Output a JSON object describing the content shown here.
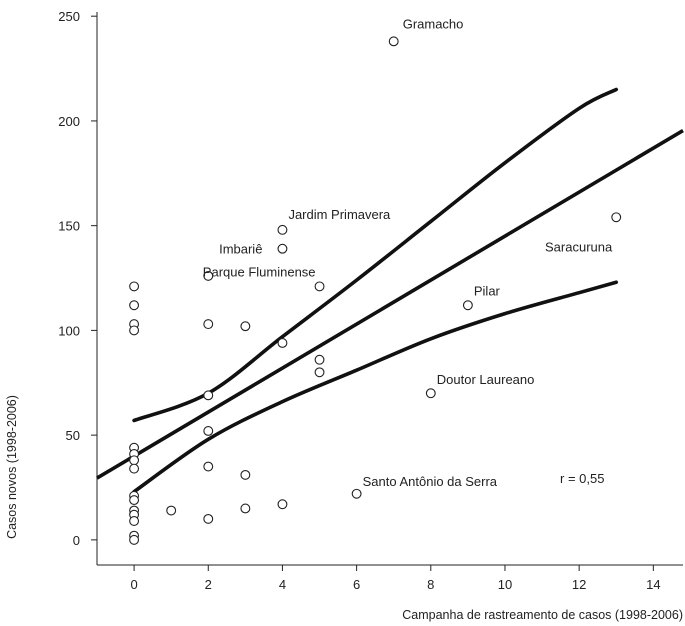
{
  "chart_data": {
    "type": "scatter",
    "title": "",
    "xlabel": "Campanha de rastreamento de casos (1998-2006)",
    "ylabel": "Casos novos (1998-2006)",
    "xlim": [
      -1,
      14.8
    ],
    "ylim": [
      -12,
      252
    ],
    "xticks": [
      0,
      2,
      4,
      6,
      8,
      10,
      12,
      14
    ],
    "yticks": [
      0,
      50,
      100,
      150,
      200,
      250
    ],
    "points": [
      {
        "x": 0,
        "y": 121
      },
      {
        "x": 0,
        "y": 112
      },
      {
        "x": 0,
        "y": 103
      },
      {
        "x": 0,
        "y": 100
      },
      {
        "x": 0,
        "y": 44
      },
      {
        "x": 0,
        "y": 41
      },
      {
        "x": 0,
        "y": 38
      },
      {
        "x": 0,
        "y": 34
      },
      {
        "x": 0,
        "y": 21
      },
      {
        "x": 0,
        "y": 19
      },
      {
        "x": 0,
        "y": 14
      },
      {
        "x": 0,
        "y": 12
      },
      {
        "x": 0,
        "y": 9
      },
      {
        "x": 0,
        "y": 2
      },
      {
        "x": 0,
        "y": 0
      },
      {
        "x": 1,
        "y": 14
      },
      {
        "x": 2,
        "y": 126
      },
      {
        "x": 2,
        "y": 103
      },
      {
        "x": 2,
        "y": 69
      },
      {
        "x": 2,
        "y": 52
      },
      {
        "x": 2,
        "y": 35
      },
      {
        "x": 2,
        "y": 10
      },
      {
        "x": 3,
        "y": 102
      },
      {
        "x": 3,
        "y": 31
      },
      {
        "x": 3,
        "y": 15
      },
      {
        "x": 4,
        "y": 148,
        "label": "Jardim Primavera"
      },
      {
        "x": 4,
        "y": 139,
        "label": "Imbariê"
      },
      {
        "x": 4,
        "y": 94
      },
      {
        "x": 4,
        "y": 17
      },
      {
        "x": 5,
        "y": 121,
        "label": "Parque Fluminense"
      },
      {
        "x": 5,
        "y": 86
      },
      {
        "x": 5,
        "y": 80
      },
      {
        "x": 6,
        "y": 22,
        "label": "Santo Antônio da Serra"
      },
      {
        "x": 7,
        "y": 238,
        "label": "Gramacho"
      },
      {
        "x": 8,
        "y": 70,
        "label": "Doutor Laureano"
      },
      {
        "x": 9,
        "y": 112,
        "label": "Pilar"
      },
      {
        "x": 13,
        "y": 154,
        "label": "Saracuruna"
      }
    ],
    "regression": {
      "intercept": 40,
      "slope": 10.5,
      "x_range": [
        -1,
        14.8
      ]
    },
    "confidence_band": {
      "upper": [
        [
          0,
          57
        ],
        [
          2,
          70
        ],
        [
          4,
          97
        ],
        [
          6,
          124
        ],
        [
          8,
          152
        ],
        [
          10,
          180
        ],
        [
          12,
          206
        ],
        [
          13,
          215
        ]
      ],
      "lower": [
        [
          0,
          23
        ],
        [
          2,
          48
        ],
        [
          4,
          66
        ],
        [
          6,
          81
        ],
        [
          8,
          96
        ],
        [
          10,
          108
        ],
        [
          12,
          118
        ],
        [
          13,
          123
        ]
      ]
    },
    "annotation": "r = 0,55"
  }
}
